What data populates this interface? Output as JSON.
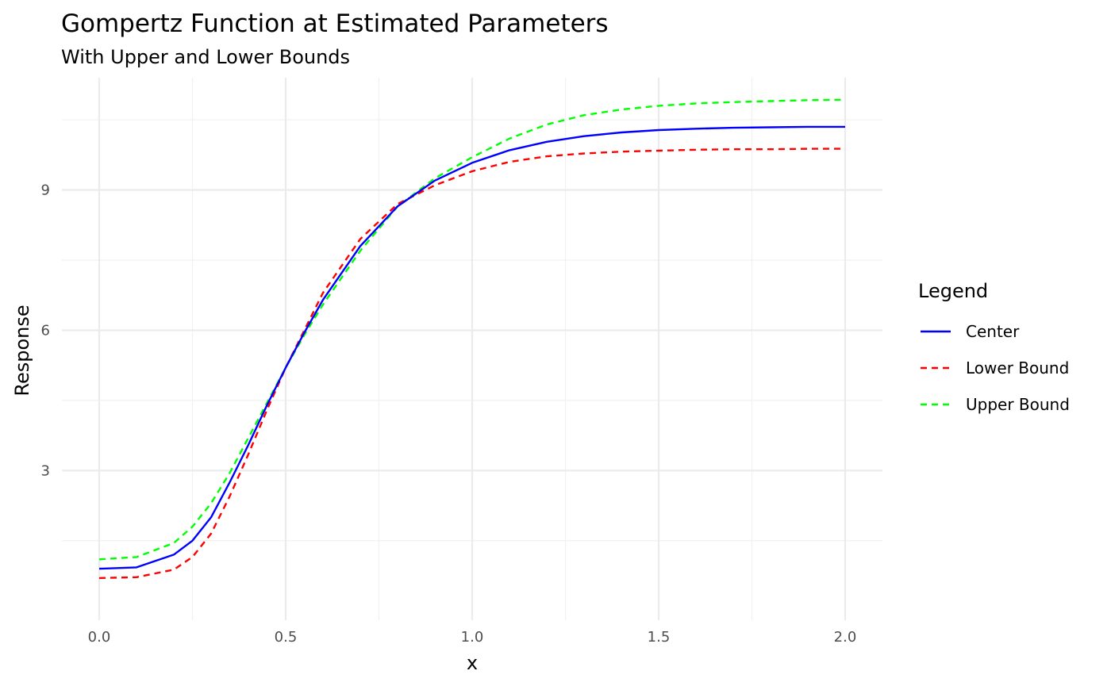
{
  "chart_data": {
    "type": "line",
    "title": "Gompertz Function at Estimated Parameters",
    "subtitle": "With Upper and Lower Bounds",
    "xlabel": "x",
    "ylabel": "Response",
    "xlim": [
      -0.1,
      2.1
    ],
    "ylim": [
      -0.2,
      11.4
    ],
    "x_ticks": [
      0.0,
      0.5,
      1.0,
      1.5,
      2.0
    ],
    "x_tick_labels": [
      "0.0",
      "0.5",
      "1.0",
      "1.5",
      "2.0"
    ],
    "y_ticks": [
      3,
      6,
      9
    ],
    "y_tick_labels": [
      "3",
      "6",
      "9"
    ],
    "grid": true,
    "legend": {
      "title": "Legend",
      "position": "right"
    },
    "series": [
      {
        "name": "Center",
        "color": "#0000ff",
        "dashed": false,
        "x": [
          0.0,
          0.1,
          0.2,
          0.25,
          0.3,
          0.35,
          0.4,
          0.45,
          0.5,
          0.55,
          0.6,
          0.7,
          0.8,
          0.9,
          1.0,
          1.1,
          1.2,
          1.3,
          1.4,
          1.5,
          1.6,
          1.7,
          1.8,
          1.9,
          2.0
        ],
        "y": [
          0.9,
          0.93,
          1.2,
          1.5,
          2.0,
          2.75,
          3.55,
          4.4,
          5.2,
          5.95,
          6.65,
          7.8,
          8.65,
          9.2,
          9.58,
          9.85,
          10.03,
          10.15,
          10.23,
          10.28,
          10.31,
          10.33,
          10.34,
          10.35,
          10.35
        ]
      },
      {
        "name": "Lower Bound",
        "color": "#ff0000",
        "dashed": true,
        "x": [
          0.0,
          0.1,
          0.2,
          0.25,
          0.3,
          0.35,
          0.4,
          0.45,
          0.5,
          0.55,
          0.6,
          0.7,
          0.8,
          0.9,
          1.0,
          1.1,
          1.2,
          1.3,
          1.4,
          1.5,
          1.6,
          1.7,
          1.8,
          1.9,
          2.0
        ],
        "y": [
          0.7,
          0.72,
          0.88,
          1.15,
          1.65,
          2.45,
          3.35,
          4.3,
          5.2,
          6.0,
          6.8,
          7.95,
          8.7,
          9.1,
          9.4,
          9.6,
          9.72,
          9.78,
          9.82,
          9.84,
          9.86,
          9.87,
          9.87,
          9.88,
          9.88
        ]
      },
      {
        "name": "Upper Bound",
        "color": "#00ff00",
        "dashed": true,
        "x": [
          0.0,
          0.1,
          0.2,
          0.25,
          0.3,
          0.35,
          0.4,
          0.45,
          0.5,
          0.55,
          0.6,
          0.7,
          0.8,
          0.9,
          1.0,
          1.1,
          1.2,
          1.3,
          1.4,
          1.5,
          1.6,
          1.7,
          1.8,
          1.9,
          2.0
        ],
        "y": [
          1.1,
          1.15,
          1.45,
          1.8,
          2.3,
          2.95,
          3.7,
          4.45,
          5.2,
          5.9,
          6.55,
          7.7,
          8.65,
          9.25,
          9.7,
          10.1,
          10.4,
          10.6,
          10.72,
          10.8,
          10.85,
          10.88,
          10.9,
          10.92,
          10.93
        ]
      }
    ]
  }
}
